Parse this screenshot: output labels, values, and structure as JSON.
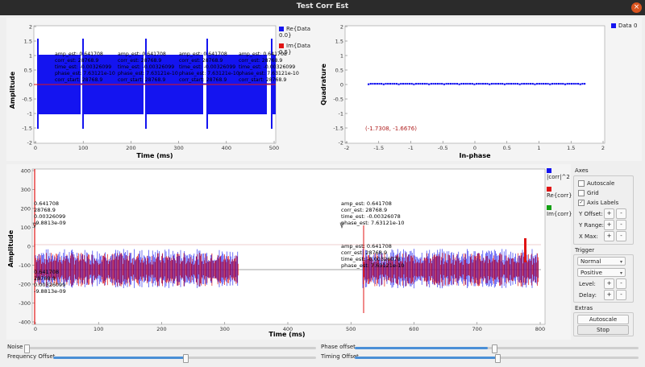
{
  "window": {
    "title": "Test Corr Est",
    "close_glyph": "×"
  },
  "plot1": {
    "xlabel": "Time (ms)",
    "ylabel": "Amplitude",
    "xticks": [
      "0",
      "100",
      "200",
      "300",
      "400",
      "500"
    ],
    "yticks": [
      "2",
      "1.5",
      "1",
      "0.5",
      "0",
      "-0.5",
      "-1",
      "-1.5",
      "-2"
    ],
    "legend": [
      {
        "label": "Re{Data 0.0}",
        "color": "#1414f0"
      },
      {
        "label": "Im{Data 0.5}",
        "color": "#e01414"
      }
    ],
    "tag_lines": [
      "amp_est: 0.641708",
      "corr_est: 28768.9",
      "time_est: -0.00326099",
      "phase_est: 7.63121e-10",
      "corr_start: 28768.9"
    ]
  },
  "plot2": {
    "xlabel": "In-phase",
    "ylabel": "Quadrature",
    "xticks": [
      "-2",
      "-1.5",
      "-1",
      "-0.5",
      "0",
      "0.5",
      "1",
      "1.5",
      "2"
    ],
    "yticks": [
      "2",
      "1.5",
      "1",
      "0.5",
      "0",
      "-0.5",
      "-1",
      "-1.5",
      "-2"
    ],
    "legend": [
      {
        "label": "Data 0",
        "color": "#1414f0"
      }
    ],
    "cursor_readout": "(-1.7308, -1.6676)"
  },
  "plot3": {
    "xlabel": "Time (ms)",
    "ylabel": "Amplitude",
    "xticks": [
      "0",
      "100",
      "200",
      "300",
      "400",
      "500",
      "600",
      "700",
      "800"
    ],
    "yticks": [
      "400",
      "300",
      "200",
      "100",
      "0",
      "-100",
      "-200",
      "-300",
      "-400"
    ],
    "legend": [
      {
        "label": "|corr|^2",
        "color": "#1414f0"
      },
      {
        "label": "Re{corr}",
        "color": "#e01414"
      },
      {
        "label": "Im{corr}",
        "color": "#14a014"
      }
    ],
    "tag_left_top": [
      "0.641708",
      "28768.9",
      "0.00326099",
      "-9.8813e-09"
    ],
    "tag_left_bottom": [
      "0.641708",
      "28768.9",
      "0.00326099",
      "-9.8813e-09"
    ],
    "tag_right_top": [
      "amp_est: 0.641708",
      "corr_est: 28768.9",
      "time_est: -0.00326078",
      "phase_est: 7.63121e-10"
    ],
    "tag_right_bottom": [
      "amp_est: 0.641708",
      "corr_est: 28768.9",
      "time_est: -0.00326078",
      "phase_est: 7.63121e-10"
    ]
  },
  "controls": {
    "axes_title": "Axes",
    "autoscale_check": "Autoscale",
    "grid_check": "Grid",
    "axis_labels_check": "Axis Labels",
    "axis_labels_checked_glyph": "✓",
    "y_offset": "Y Offset:",
    "y_range": "Y Range:",
    "x_max": "X Max:",
    "plus": "+",
    "minus": "-",
    "trigger_title": "Trigger",
    "mode_value": "Normal",
    "slope_value": "Positive",
    "combo_arrow": "▾",
    "level": "Level:",
    "delay": "Delay:",
    "extras_title": "Extras",
    "autoscale_btn": "Autoscale",
    "stop_btn": "Stop"
  },
  "sliders": {
    "noise": {
      "label": "Noise",
      "value": 0.0
    },
    "phase_offset": {
      "label": "Phase offset",
      "value": 0.47
    },
    "frequency_offset": {
      "label": "Frequency Offset",
      "value": 0.5
    },
    "timing_offset": {
      "label": "Timing Offset",
      "value": 0.5
    }
  }
}
